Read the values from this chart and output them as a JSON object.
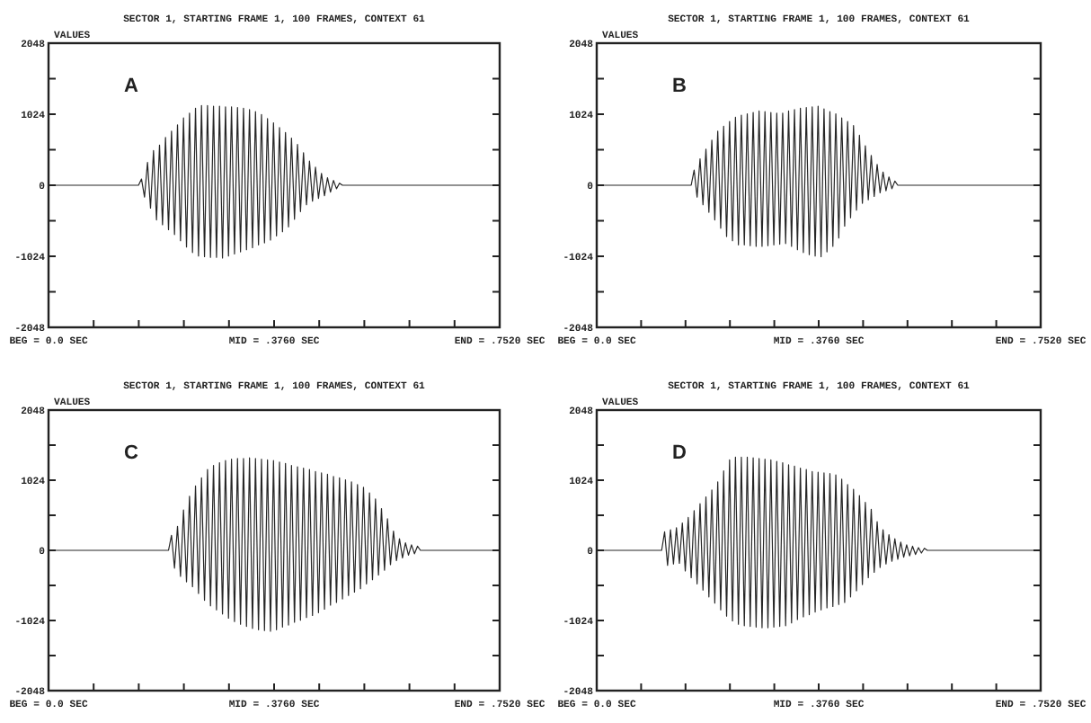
{
  "chart_data": [
    {
      "type": "line",
      "title": "SECTOR 1, STARTING FRAME 1, 100 FRAMES, CONTEXT 61",
      "ylabel": "VALUES",
      "annotations": [
        "A"
      ],
      "color": "#262626",
      "x": [
        0,
        0.15,
        0.155,
        0.16,
        0.165,
        0.17,
        0.175,
        0.18,
        0.185,
        0.19,
        0.195,
        0.2,
        0.205,
        0.21,
        0.215,
        0.22,
        0.225,
        0.23,
        0.235,
        0.24,
        0.245,
        0.25,
        0.255,
        0.26,
        0.265,
        0.27,
        0.275,
        0.28,
        0.285,
        0.29,
        0.295,
        0.3,
        0.305,
        0.31,
        0.315,
        0.32,
        0.325,
        0.33,
        0.335,
        0.34,
        0.345,
        0.35,
        0.355,
        0.36,
        0.365,
        0.37,
        0.375,
        0.38,
        0.385,
        0.39,
        0.395,
        0.4,
        0.405,
        0.41,
        0.415,
        0.42,
        0.425,
        0.43,
        0.435,
        0.44,
        0.445,
        0.45,
        0.455,
        0.46,
        0.465,
        0.47,
        0.475,
        0.48,
        0.485,
        0.49,
        0.752
      ],
      "values": [
        0,
        0,
        90,
        -170,
        330,
        -330,
        500,
        -500,
        580,
        -570,
        690,
        -640,
        780,
        -710,
        870,
        -800,
        970,
        -890,
        1040,
        -970,
        1110,
        -1020,
        1150,
        -1030,
        1150,
        -1040,
        1140,
        -1040,
        1140,
        -1050,
        1130,
        -1020,
        1130,
        -990,
        1120,
        -960,
        1110,
        -930,
        1090,
        -900,
        1060,
        -860,
        1020,
        -830,
        960,
        -790,
        900,
        -730,
        830,
        -670,
        760,
        -600,
        680,
        -490,
        590,
        -380,
        470,
        -280,
        350,
        -230,
        260,
        -190,
        170,
        -150,
        110,
        -100,
        70,
        -50,
        30,
        0,
        0
      ],
      "xlim": [
        0,
        0.752
      ],
      "xticks": [
        {
          "value": 0,
          "label": "BEG = 0.0 SEC"
        },
        {
          "value": 0.0752,
          "label": null
        },
        {
          "value": 0.1504,
          "label": null
        },
        {
          "value": 0.2256,
          "label": null
        },
        {
          "value": 0.3008,
          "label": null
        },
        {
          "value": 0.376,
          "label": "MID = .3760 SEC"
        },
        {
          "value": 0.4512,
          "label": null
        },
        {
          "value": 0.5264,
          "label": null
        },
        {
          "value": 0.6016,
          "label": null
        },
        {
          "value": 0.6768,
          "label": null
        },
        {
          "value": 0.752,
          "label": "END = .7520 SEC"
        }
      ],
      "ylim": [
        -2048,
        2048
      ],
      "yticks": [
        -2048,
        {
          "value": -1536,
          "label": null
        },
        -1024,
        {
          "value": -512,
          "label": null
        },
        0,
        {
          "value": 512,
          "label": null
        },
        1024,
        {
          "value": 1536,
          "label": null
        },
        2048
      ]
    },
    {
      "type": "line",
      "title": "SECTOR 1, STARTING FRAME 1, 100 FRAMES, CONTEXT 61",
      "ylabel": "VALUES",
      "annotations": [
        "B"
      ],
      "color": "#262626",
      "x": [
        0,
        0.16,
        0.165,
        0.17,
        0.175,
        0.18,
        0.185,
        0.19,
        0.195,
        0.2,
        0.205,
        0.21,
        0.215,
        0.22,
        0.225,
        0.23,
        0.235,
        0.24,
        0.245,
        0.25,
        0.255,
        0.26,
        0.265,
        0.27,
        0.275,
        0.28,
        0.285,
        0.29,
        0.295,
        0.3,
        0.305,
        0.31,
        0.315,
        0.32,
        0.325,
        0.33,
        0.335,
        0.34,
        0.345,
        0.35,
        0.355,
        0.36,
        0.365,
        0.37,
        0.375,
        0.38,
        0.385,
        0.39,
        0.395,
        0.4,
        0.405,
        0.41,
        0.415,
        0.42,
        0.425,
        0.43,
        0.435,
        0.44,
        0.445,
        0.45,
        0.455,
        0.46,
        0.465,
        0.47,
        0.475,
        0.48,
        0.485,
        0.49,
        0.495,
        0.5,
        0.505,
        0.51,
        0.752
      ],
      "values": [
        0,
        0,
        220,
        -170,
        380,
        -280,
        520,
        -390,
        650,
        -500,
        780,
        -620,
        850,
        -740,
        920,
        -800,
        980,
        -860,
        1010,
        -860,
        1030,
        -870,
        1050,
        -880,
        1070,
        -880,
        1060,
        -870,
        1050,
        -860,
        1040,
        -850,
        1040,
        -840,
        1070,
        -880,
        1090,
        -930,
        1110,
        -970,
        1120,
        -1000,
        1130,
        -1020,
        1140,
        -1030,
        1100,
        -960,
        1060,
        -880,
        1030,
        -760,
        970,
        -590,
        920,
        -470,
        860,
        -360,
        720,
        -260,
        570,
        -210,
        430,
        -160,
        300,
        -110,
        190,
        -80,
        120,
        -50,
        60,
        0,
        0
      ],
      "xlim": [
        0,
        0.752
      ],
      "xticks": [
        {
          "value": 0,
          "label": "BEG = 0.0 SEC"
        },
        {
          "value": 0.0752,
          "label": null
        },
        {
          "value": 0.1504,
          "label": null
        },
        {
          "value": 0.2256,
          "label": null
        },
        {
          "value": 0.3008,
          "label": null
        },
        {
          "value": 0.376,
          "label": "MID = .3760 SEC"
        },
        {
          "value": 0.4512,
          "label": null
        },
        {
          "value": 0.5264,
          "label": null
        },
        {
          "value": 0.6016,
          "label": null
        },
        {
          "value": 0.6768,
          "label": null
        },
        {
          "value": 0.752,
          "label": "END = .7520 SEC"
        }
      ],
      "ylim": [
        -2048,
        2048
      ],
      "yticks": [
        -2048,
        {
          "value": -1536,
          "label": null
        },
        -1024,
        {
          "value": -512,
          "label": null
        },
        0,
        {
          "value": 512,
          "label": null
        },
        1024,
        {
          "value": 1536,
          "label": null
        },
        2048
      ]
    },
    {
      "type": "line",
      "title": "SECTOR 1, STARTING FRAME 1, 100 FRAMES, CONTEXT 61",
      "ylabel": "VALUES",
      "annotations": [
        "C"
      ],
      "color": "#262626",
      "x": [
        0,
        0.2,
        0.205,
        0.21,
        0.215,
        0.22,
        0.225,
        0.23,
        0.235,
        0.24,
        0.245,
        0.25,
        0.255,
        0.26,
        0.265,
        0.27,
        0.275,
        0.28,
        0.285,
        0.29,
        0.295,
        0.3,
        0.305,
        0.31,
        0.315,
        0.32,
        0.325,
        0.33,
        0.335,
        0.34,
        0.345,
        0.35,
        0.355,
        0.36,
        0.365,
        0.37,
        0.375,
        0.38,
        0.385,
        0.39,
        0.395,
        0.4,
        0.405,
        0.41,
        0.415,
        0.42,
        0.425,
        0.43,
        0.435,
        0.44,
        0.445,
        0.45,
        0.455,
        0.46,
        0.465,
        0.47,
        0.475,
        0.48,
        0.485,
        0.49,
        0.495,
        0.5,
        0.505,
        0.51,
        0.515,
        0.52,
        0.525,
        0.53,
        0.535,
        0.54,
        0.545,
        0.55,
        0.555,
        0.56,
        0.565,
        0.57,
        0.575,
        0.58,
        0.585,
        0.59,
        0.595,
        0.6,
        0.605,
        0.61,
        0.615,
        0.62,
        0.752
      ],
      "values": [
        0,
        0,
        220,
        -260,
        350,
        -380,
        590,
        -460,
        790,
        -530,
        940,
        -630,
        1060,
        -730,
        1180,
        -810,
        1240,
        -870,
        1280,
        -930,
        1310,
        -990,
        1330,
        -1040,
        1340,
        -1080,
        1340,
        -1110,
        1350,
        -1140,
        1340,
        -1160,
        1330,
        -1170,
        1320,
        -1180,
        1310,
        -1160,
        1290,
        -1120,
        1270,
        -1090,
        1240,
        -1050,
        1220,
        -1020,
        1200,
        -980,
        1180,
        -950,
        1150,
        -910,
        1130,
        -860,
        1110,
        -800,
        1080,
        -760,
        1060,
        -710,
        1030,
        -660,
        1000,
        -610,
        960,
        -560,
        920,
        -490,
        840,
        -430,
        750,
        -360,
        610,
        -290,
        460,
        -210,
        280,
        -150,
        170,
        -110,
        110,
        -70,
        80,
        -50,
        60,
        0,
        0
      ],
      "xlim": [
        0,
        0.752
      ],
      "xticks": [
        {
          "value": 0,
          "label": "BEG = 0.0 SEC"
        },
        {
          "value": 0.0752,
          "label": null
        },
        {
          "value": 0.1504,
          "label": null
        },
        {
          "value": 0.2256,
          "label": null
        },
        {
          "value": 0.3008,
          "label": null
        },
        {
          "value": 0.376,
          "label": "MID = .3760 SEC"
        },
        {
          "value": 0.4512,
          "label": null
        },
        {
          "value": 0.5264,
          "label": null
        },
        {
          "value": 0.6016,
          "label": null
        },
        {
          "value": 0.6768,
          "label": null
        },
        {
          "value": 0.752,
          "label": "END = .7520 SEC"
        }
      ],
      "ylim": [
        -2048,
        2048
      ],
      "yticks": [
        -2048,
        {
          "value": -1536,
          "label": null
        },
        -1024,
        {
          "value": -512,
          "label": null
        },
        0,
        {
          "value": 512,
          "label": null
        },
        1024,
        {
          "value": 1536,
          "label": null
        },
        2048
      ]
    },
    {
      "type": "line",
      "title": "SECTOR 1, STARTING FRAME 1, 100 FRAMES, CONTEXT 61",
      "ylabel": "VALUES",
      "annotations": [
        "D"
      ],
      "color": "#262626",
      "x": [
        0,
        0.11,
        0.115,
        0.12,
        0.125,
        0.13,
        0.135,
        0.14,
        0.145,
        0.15,
        0.155,
        0.16,
        0.165,
        0.17,
        0.175,
        0.18,
        0.185,
        0.19,
        0.195,
        0.2,
        0.205,
        0.21,
        0.215,
        0.22,
        0.225,
        0.23,
        0.235,
        0.24,
        0.245,
        0.25,
        0.255,
        0.26,
        0.265,
        0.27,
        0.275,
        0.28,
        0.285,
        0.29,
        0.295,
        0.3,
        0.305,
        0.31,
        0.315,
        0.32,
        0.325,
        0.33,
        0.335,
        0.34,
        0.345,
        0.35,
        0.355,
        0.36,
        0.365,
        0.37,
        0.375,
        0.38,
        0.385,
        0.39,
        0.395,
        0.4,
        0.405,
        0.41,
        0.415,
        0.42,
        0.425,
        0.43,
        0.435,
        0.44,
        0.445,
        0.45,
        0.455,
        0.46,
        0.465,
        0.47,
        0.475,
        0.48,
        0.485,
        0.49,
        0.495,
        0.5,
        0.505,
        0.51,
        0.515,
        0.52,
        0.525,
        0.53,
        0.535,
        0.54,
        0.545,
        0.55,
        0.555,
        0.56,
        0.752
      ],
      "values": [
        0,
        0,
        270,
        -220,
        300,
        -200,
        330,
        -190,
        400,
        -300,
        480,
        -400,
        580,
        -490,
        680,
        -580,
        780,
        -680,
        880,
        -770,
        1000,
        -870,
        1160,
        -960,
        1320,
        -1030,
        1360,
        -1080,
        1360,
        -1100,
        1360,
        -1110,
        1350,
        -1120,
        1340,
        -1130,
        1330,
        -1130,
        1320,
        -1120,
        1300,
        -1110,
        1280,
        -1100,
        1250,
        -1060,
        1230,
        -1010,
        1200,
        -970,
        1180,
        -940,
        1150,
        -900,
        1140,
        -870,
        1130,
        -840,
        1120,
        -820,
        1100,
        -790,
        1040,
        -760,
        960,
        -680,
        890,
        -590,
        800,
        -500,
        700,
        -400,
        600,
        -320,
        420,
        -250,
        300,
        -200,
        230,
        -160,
        170,
        -130,
        120,
        -100,
        80,
        -80,
        60,
        -60,
        40,
        -40,
        30,
        0,
        0
      ],
      "xlim": [
        0,
        0.752
      ],
      "xticks": [
        {
          "value": 0,
          "label": "BEG = 0.0 SEC"
        },
        {
          "value": 0.0752,
          "label": null
        },
        {
          "value": 0.1504,
          "label": null
        },
        {
          "value": 0.2256,
          "label": null
        },
        {
          "value": 0.3008,
          "label": null
        },
        {
          "value": 0.376,
          "label": "MID = .3760 SEC"
        },
        {
          "value": 0.4512,
          "label": null
        },
        {
          "value": 0.5264,
          "label": null
        },
        {
          "value": 0.6016,
          "label": null
        },
        {
          "value": 0.6768,
          "label": null
        },
        {
          "value": 0.752,
          "label": "END = .7520 SEC"
        }
      ],
      "ylim": [
        -2048,
        2048
      ],
      "yticks": [
        -2048,
        {
          "value": -1536,
          "label": null
        },
        -1024,
        {
          "value": -512,
          "label": null
        },
        0,
        {
          "value": 512,
          "label": null
        },
        1024,
        {
          "value": 1536,
          "label": null
        },
        2048
      ]
    }
  ]
}
